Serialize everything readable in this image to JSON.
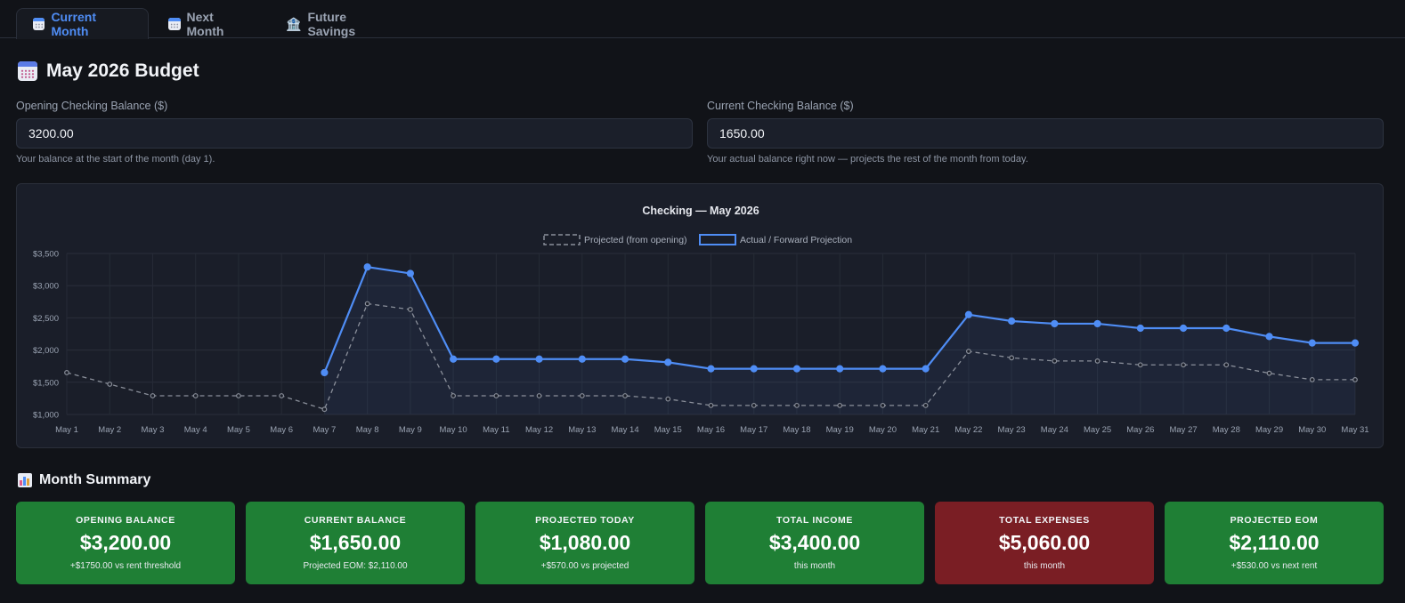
{
  "tabs": [
    {
      "label": "Current Month",
      "icon": "calendar-icon",
      "active": true
    },
    {
      "label": "Next Month",
      "icon": "calendar-icon",
      "active": false
    },
    {
      "label": "Future Savings",
      "icon": "bank-icon",
      "active": false
    }
  ],
  "page": {
    "title": "May 2026 Budget",
    "icon": "calendar-icon"
  },
  "fields": {
    "opening": {
      "label": "Opening Checking Balance ($)",
      "value": "3200.00",
      "hint": "Your balance at the start of the month (day 1)."
    },
    "current": {
      "label": "Current Checking Balance ($)",
      "value": "1650.00",
      "hint": "Your actual balance right now — projects the rest of the month from today."
    }
  },
  "colors": {
    "accent": "#4f8df5",
    "positive": "#1f7f35",
    "negative": "#7a1e24",
    "projected_line": "#8a8f9a"
  },
  "chart_data": {
    "type": "line",
    "title": "Checking — May 2026",
    "legend": [
      "Projected (from opening)",
      "Actual / Forward Projection"
    ],
    "legend_position": "top",
    "grid": true,
    "ylim": [
      1000,
      3500
    ],
    "yticks": [
      "$1,000",
      "$1,500",
      "$2,000",
      "$2,500",
      "$3,000",
      "$3,500"
    ],
    "ytick_values": [
      1000,
      1500,
      2000,
      2500,
      3000,
      3500
    ],
    "categories": [
      "May 1",
      "May 2",
      "May 3",
      "May 4",
      "May 5",
      "May 6",
      "May 7",
      "May 8",
      "May 9",
      "May 10",
      "May 11",
      "May 12",
      "May 13",
      "May 14",
      "May 15",
      "May 16",
      "May 17",
      "May 18",
      "May 19",
      "May 20",
      "May 21",
      "May 22",
      "May 23",
      "May 24",
      "May 25",
      "May 26",
      "May 27",
      "May 28",
      "May 29",
      "May 30",
      "May 31"
    ],
    "series": [
      {
        "name": "Projected (from opening)",
        "style": "dashed",
        "color": "#8a8f9a",
        "values": [
          1650,
          1470,
          1290,
          1290,
          1290,
          1290,
          1080,
          2720,
          2630,
          1290,
          1290,
          1290,
          1290,
          1290,
          1240,
          1140,
          1140,
          1140,
          1140,
          1140,
          1140,
          1980,
          1880,
          1830,
          1830,
          1770,
          1770,
          1770,
          1640,
          1540,
          1540
        ]
      },
      {
        "name": "Actual / Forward Projection",
        "style": "solid",
        "color": "#4f8df5",
        "values": [
          null,
          null,
          null,
          null,
          null,
          null,
          1650,
          3290,
          3190,
          1860,
          1860,
          1860,
          1860,
          1860,
          1810,
          1710,
          1710,
          1710,
          1710,
          1710,
          1710,
          2550,
          2450,
          2410,
          2410,
          2340,
          2340,
          2340,
          2210,
          2110,
          2110
        ]
      }
    ]
  },
  "summary": {
    "title": "Month Summary",
    "cards": [
      {
        "label": "Opening Balance",
        "value": "$3,200.00",
        "sub": "+$1750.00 vs rent threshold",
        "tone": "positive"
      },
      {
        "label": "Current Balance",
        "value": "$1,650.00",
        "sub": "Projected EOM: $2,110.00",
        "tone": "positive"
      },
      {
        "label": "Projected Today",
        "value": "$1,080.00",
        "sub": "+$570.00 vs projected",
        "tone": "positive"
      },
      {
        "label": "Total Income",
        "value": "$3,400.00",
        "sub": "this month",
        "tone": "positive"
      },
      {
        "label": "Total Expenses",
        "value": "$5,060.00",
        "sub": "this month",
        "tone": "negative"
      },
      {
        "label": "Projected EOM",
        "value": "$2,110.00",
        "sub": "+$530.00 vs next rent",
        "tone": "positive"
      }
    ]
  }
}
